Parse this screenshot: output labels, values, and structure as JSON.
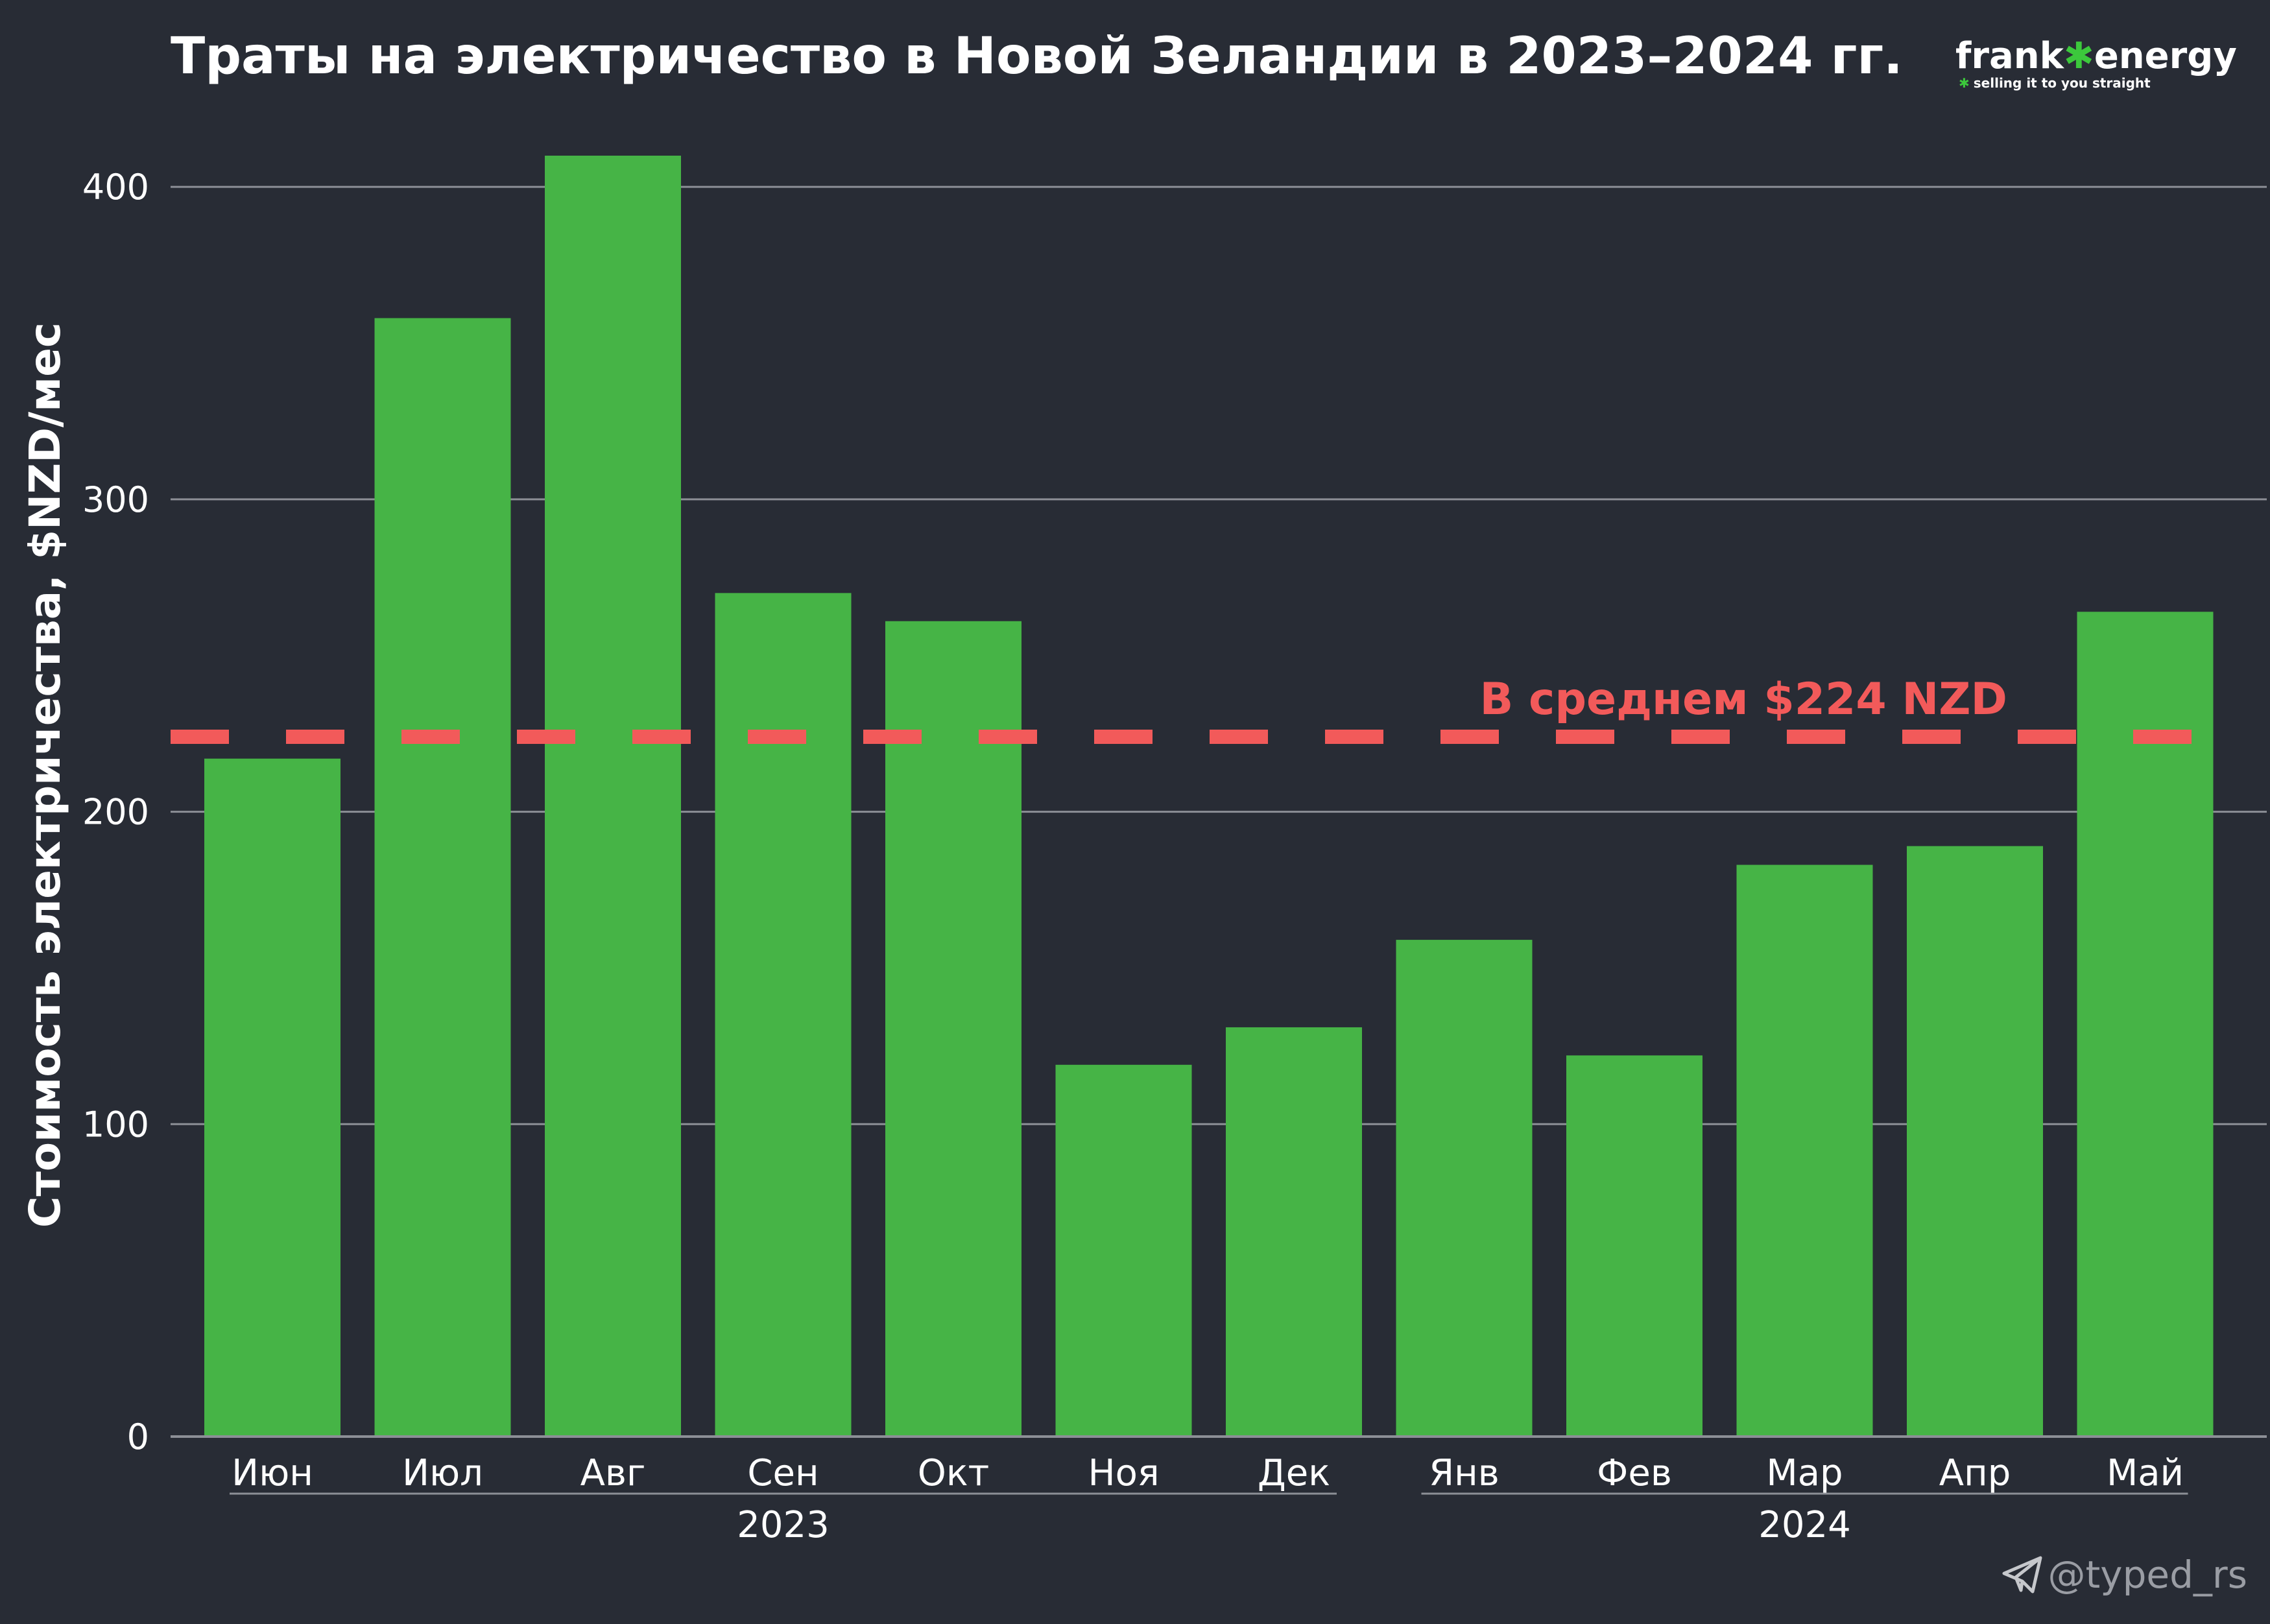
{
  "brand": {
    "name_left": "frank",
    "name_mark": "✱",
    "name_right": "energy",
    "tagline": "selling it to you straight",
    "tagline_mark": "✱"
  },
  "watermark": {
    "icon": "telegram-icon",
    "handle": "@typed_rs"
  },
  "colors": {
    "background": "#282c35",
    "bar": "#46b446",
    "average_line": "#f25a5a",
    "grid": "#8c8f96",
    "text": "#ffffff",
    "brand_mark": "#3cc83c",
    "watermark": "#9a9da4"
  },
  "chart_data": {
    "type": "bar",
    "title": "Траты на электричество в Новой Зеландии в 2023–2024 гг.",
    "ylabel": "Стоимость электричества, $NZD/мес",
    "xlabel": "",
    "categories": [
      "Июн",
      "Июл",
      "Авг",
      "Сен",
      "Окт",
      "Ноя",
      "Дек",
      "Янв",
      "Фев",
      "Мар",
      "Апр",
      "Май"
    ],
    "values": [
      217,
      358,
      410,
      270,
      261,
      119,
      131,
      159,
      122,
      183,
      189,
      264
    ],
    "ylim": [
      0,
      410
    ],
    "yticks": [
      0,
      100,
      200,
      300,
      400
    ],
    "grid": true,
    "groups": [
      {
        "label": "2023",
        "start": 0,
        "end": 6
      },
      {
        "label": "2024",
        "start": 7,
        "end": 11
      }
    ],
    "average": {
      "value": 224,
      "label": "В среднем $224 NZD"
    }
  }
}
